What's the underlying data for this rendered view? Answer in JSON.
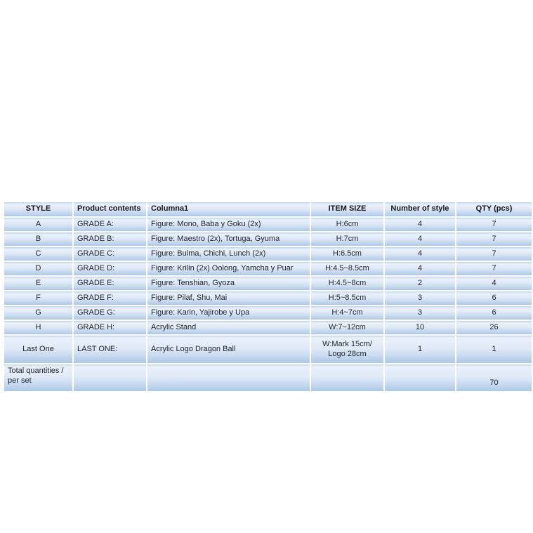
{
  "page": {
    "background": "#ffffff"
  },
  "colors": {
    "row_gradient_top_edge": "#bdd3ec",
    "row_gradient_light": "#e9f1fb",
    "row_gradient_bottom": "#adc7e6",
    "separator": "#ffffff",
    "body_text": "#1d222b",
    "header_text": "#14161e"
  },
  "table": {
    "headers": [
      "STYLE",
      "Product contents",
      "Columna1",
      "ITEM SIZE",
      "Number of style",
      "QTY (pcs)"
    ],
    "rows": [
      {
        "style": "A",
        "contents": "GRADE A:",
        "columna1": "Figure: Mono, Baba y Goku (2x)",
        "item_size": "H:6cm",
        "num_styles": "4",
        "qty": "7"
      },
      {
        "style": "B",
        "contents": "GRADE B:",
        "columna1": "Figure: Maestro (2x), Tortuga, Gyuma",
        "item_size": "H:7cm",
        "num_styles": "4",
        "qty": "7"
      },
      {
        "style": "C",
        "contents": "GRADE C:",
        "columna1": "Figure: Bulma, Chichi, Lunch (2x)",
        "item_size": "H:6.5cm",
        "num_styles": "4",
        "qty": "7"
      },
      {
        "style": "D",
        "contents": "GRADE D:",
        "columna1": "Figure: Krilin (2x) Oolong, Yamcha y Puar",
        "item_size": "H:4.5~8.5cm",
        "num_styles": "4",
        "qty": "7"
      },
      {
        "style": "E",
        "contents": "GRADE E:",
        "columna1": "Figure: Tenshian, Gyoza",
        "item_size": "H:4.5~8cm",
        "num_styles": "2",
        "qty": "4"
      },
      {
        "style": "F",
        "contents": "GRADE F:",
        "columna1": "Figure: Pilaf, Shu, Mai",
        "item_size": "H:5~8.5cm",
        "num_styles": "3",
        "qty": "6"
      },
      {
        "style": "G",
        "contents": "GRADE G:",
        "columna1": "Figure: Karin, Yajirobe y Upa",
        "item_size": "H:4~7cm",
        "num_styles": "3",
        "qty": "6"
      },
      {
        "style": "H",
        "contents": "GRADE H:",
        "columna1": "Acrylic Stand",
        "item_size": "W:7~12cm",
        "num_styles": "10",
        "qty": "26"
      },
      {
        "style": "Last One",
        "contents": "LAST ONE:",
        "columna1": "Acrylic Logo Dragon Ball",
        "item_size": "W:Mark 15cm/ Logo 28cm",
        "num_styles": "1",
        "qty": "1"
      }
    ],
    "total_row": {
      "label": "Total quantities / per set",
      "qty": "70"
    }
  }
}
